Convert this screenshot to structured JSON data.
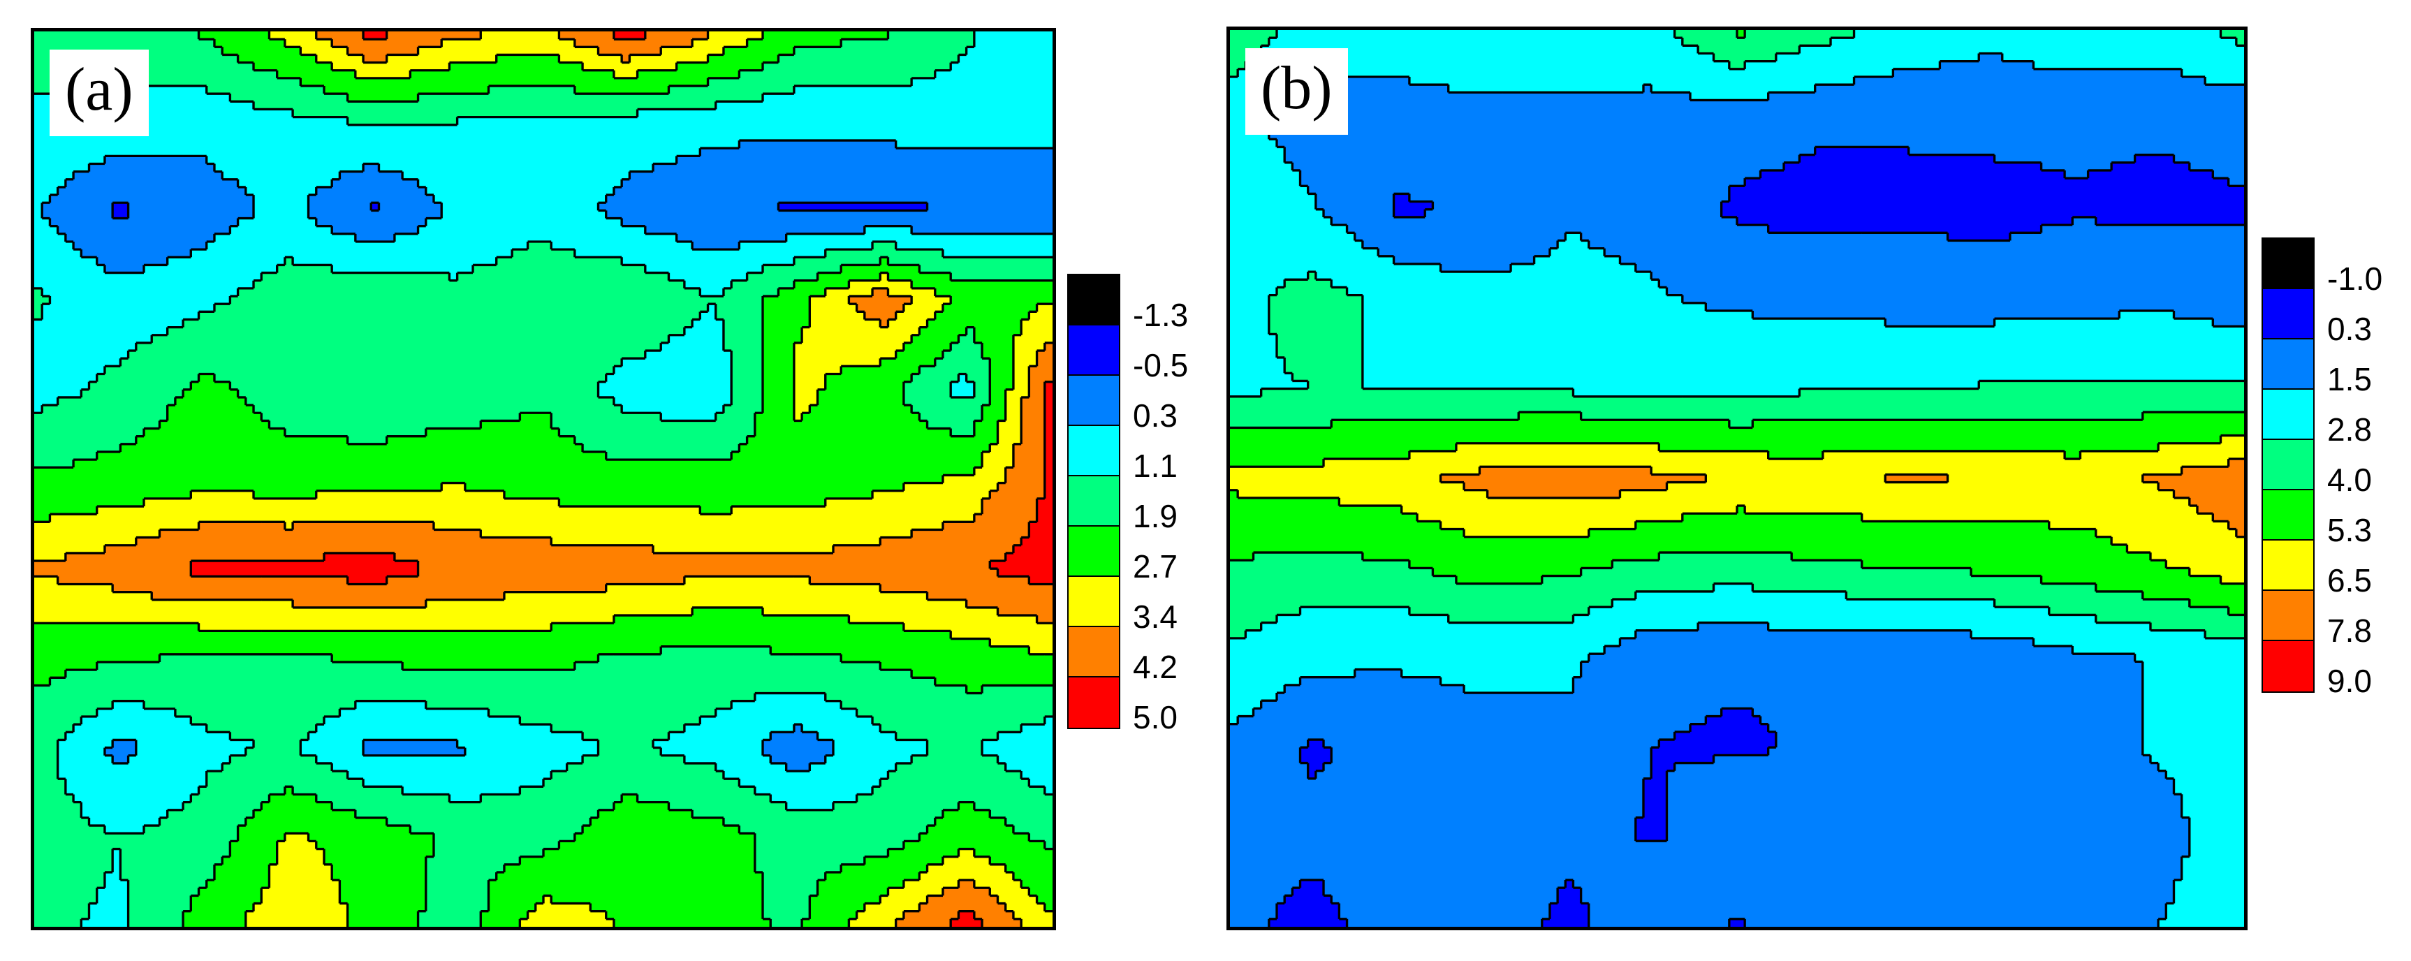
{
  "chart_data": [
    {
      "type": "heatmap",
      "panel_label": "(a)",
      "style": "filled-contour",
      "colorbar": {
        "levels": [
          "-1.3",
          "-0.5",
          "0.3",
          "1.1",
          "1.9",
          "2.7",
          "3.4",
          "4.2",
          "5.0"
        ],
        "colors": [
          "#000000",
          "#0000ff",
          "#0080ff",
          "#00ffff",
          "#00ff80",
          "#00ff00",
          "#ffff00",
          "#ff8000",
          "#ff0000"
        ]
      },
      "rows": [
        [
          1.4,
          1.6,
          2.0,
          3.0,
          4.5,
          3.6,
          3.2,
          4.6,
          3.5,
          2.2,
          2.0,
          1.2,
          0.5
        ],
        [
          1.0,
          0.8,
          0.6,
          0.9,
          1.2,
          1.1,
          1.0,
          0.8,
          0.6,
          0.5,
          0.6,
          0.7,
          0.6
        ],
        [
          0.4,
          -0.6,
          -0.1,
          0.5,
          -0.6,
          0.5,
          0.8,
          0.0,
          -0.4,
          -0.6,
          -0.6,
          -0.5,
          -0.4
        ],
        [
          1.2,
          0.6,
          0.9,
          1.6,
          1.8,
          1.3,
          1.7,
          1.9,
          1.1,
          2.5,
          3.9,
          2.4,
          2.6
        ],
        [
          0.8,
          1.3,
          2.1,
          1.5,
          1.2,
          1.4,
          1.8,
          0.7,
          0.5,
          2.9,
          2.2,
          0.8,
          4.6
        ],
        [
          2.0,
          2.2,
          2.4,
          2.3,
          2.4,
          2.6,
          2.3,
          2.2,
          2.2,
          2.3,
          2.5,
          2.8,
          4.3
        ],
        [
          3.5,
          3.8,
          4.4,
          4.4,
          4.6,
          4.0,
          3.9,
          3.8,
          3.6,
          3.6,
          3.8,
          4.1,
          4.6
        ],
        [
          2.2,
          2.0,
          1.8,
          1.8,
          2.0,
          2.2,
          2.1,
          1.8,
          1.6,
          1.8,
          2.0,
          2.3,
          2.6
        ],
        [
          1.4,
          0.1,
          0.9,
          1.2,
          0.1,
          0.2,
          0.8,
          1.2,
          0.8,
          -0.2,
          0.9,
          1.2,
          0.4
        ],
        [
          1.5,
          1.1,
          1.4,
          2.8,
          2.4,
          1.7,
          1.6,
          2.5,
          2.2,
          1.6,
          1.5,
          2.4,
          1.7
        ],
        [
          1.2,
          1.0,
          2.3,
          3.2,
          2.5,
          1.4,
          3.2,
          2.6,
          2.1,
          1.8,
          3.3,
          4.6,
          2.8
        ]
      ]
    },
    {
      "type": "heatmap",
      "panel_label": "(b)",
      "style": "filled-contour",
      "colorbar": {
        "levels": [
          "-1.0",
          "0.3",
          "1.5",
          "2.8",
          "4.0",
          "5.3",
          "6.5",
          "7.8",
          "9.0"
        ],
        "colors": [
          "#000000",
          "#0000ff",
          "#0080ff",
          "#00ffff",
          "#00ff80",
          "#00ff00",
          "#ffff00",
          "#ff8000",
          "#ff0000"
        ]
      },
      "rows": [
        [
          4.0,
          2.0,
          1.7,
          2.2,
          2.3,
          2.4,
          4.2,
          3.2,
          2.4,
          1.8,
          2.4,
          2.2,
          3.2
        ],
        [
          1.8,
          1.0,
          1.3,
          1.2,
          1.2,
          1.0,
          0.8,
          0.5,
          0.4,
          0.6,
          0.5,
          0.4,
          0.6
        ],
        [
          2.2,
          1.6,
          0.1,
          0.5,
          1.4,
          1.2,
          0.1,
          -0.1,
          0.1,
          -0.1,
          0.2,
          0.1,
          0.2
        ],
        [
          2.4,
          3.3,
          2.4,
          1.9,
          1.8,
          1.6,
          1.3,
          1.2,
          1.0,
          1.0,
          1.1,
          1.3,
          0.8
        ],
        [
          2.6,
          2.8,
          2.8,
          2.7,
          2.6,
          2.4,
          2.5,
          2.7,
          2.8,
          2.9,
          2.9,
          2.9,
          2.9
        ],
        [
          5.6,
          5.8,
          6.1,
          6.9,
          7.3,
          6.9,
          6.3,
          6.2,
          6.6,
          6.4,
          6.1,
          6.6,
          7.4
        ],
        [
          3.8,
          3.6,
          3.8,
          4.6,
          4.2,
          3.6,
          3.4,
          3.8,
          4.0,
          4.2,
          4.6,
          5.2,
          6.0
        ],
        [
          2.6,
          1.8,
          1.6,
          1.7,
          1.8,
          0.5,
          0.4,
          0.4,
          0.4,
          0.6,
          1.2,
          1.6,
          2.0
        ],
        [
          1.2,
          0.1,
          1.0,
          1.2,
          1.0,
          0.3,
          0.2,
          0.4,
          0.4,
          0.8,
          1.1,
          1.6,
          1.8
        ],
        [
          0.8,
          0.6,
          1.2,
          1.0,
          0.7,
          0.2,
          1.0,
          0.5,
          0.7,
          1.0,
          1.2,
          1.2,
          2.0
        ],
        [
          0.6,
          -0.1,
          1.0,
          1.2,
          -0.1,
          1.3,
          0.2,
          1.4,
          1.0,
          1.2,
          1.2,
          1.5,
          2.2
        ]
      ]
    }
  ]
}
